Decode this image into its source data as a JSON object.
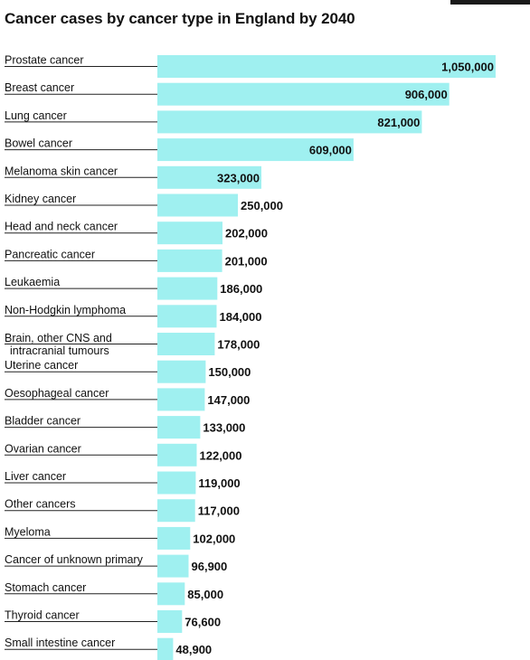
{
  "chart_data": {
    "type": "bar",
    "orientation": "horizontal",
    "title": "Cancer cases by cancer type in England by 2040",
    "colors": {
      "bar": "#9ff0f0",
      "text": "#111111",
      "rule": "#222222",
      "corner": "#1a1a1a"
    },
    "categories": [
      [
        "Prostate cancer"
      ],
      [
        "Breast cancer"
      ],
      [
        "Lung cancer"
      ],
      [
        "Bowel cancer"
      ],
      [
        "Melanoma skin cancer"
      ],
      [
        "Kidney cancer"
      ],
      [
        "Head and neck cancer"
      ],
      [
        "Pancreatic cancer"
      ],
      [
        "Leukaemia"
      ],
      [
        "Non-Hodgkin lymphoma"
      ],
      [
        "Brain, other CNS and",
        "intracranial tumours"
      ],
      [
        "Uterine cancer"
      ],
      [
        "Oesophageal cancer"
      ],
      [
        "Bladder cancer"
      ],
      [
        "Ovarian cancer"
      ],
      [
        "Liver cancer"
      ],
      [
        "Other cancers"
      ],
      [
        "Myeloma"
      ],
      [
        "Cancer of unknown primary"
      ],
      [
        "Stomach cancer"
      ],
      [
        "Thyroid cancer"
      ],
      [
        "Small intestine cancer"
      ]
    ],
    "values": [
      1050000,
      906000,
      821000,
      609000,
      323000,
      250000,
      202000,
      201000,
      186000,
      184000,
      178000,
      150000,
      147000,
      133000,
      122000,
      119000,
      117000,
      102000,
      96900,
      85000,
      76600,
      48900
    ],
    "value_labels": [
      "1,050,000",
      "906,000",
      "821,000",
      "609,000",
      "323,000",
      "250,000",
      "202,000",
      "201,000",
      "186,000",
      "184,000",
      "178,000",
      "150,000",
      "147,000",
      "133,000",
      "122,000",
      "119,000",
      "117,000",
      "102,000",
      "96,900",
      "85,000",
      "76,600",
      "48,900"
    ],
    "xlim": [
      0,
      1050000
    ],
    "grid": false
  }
}
